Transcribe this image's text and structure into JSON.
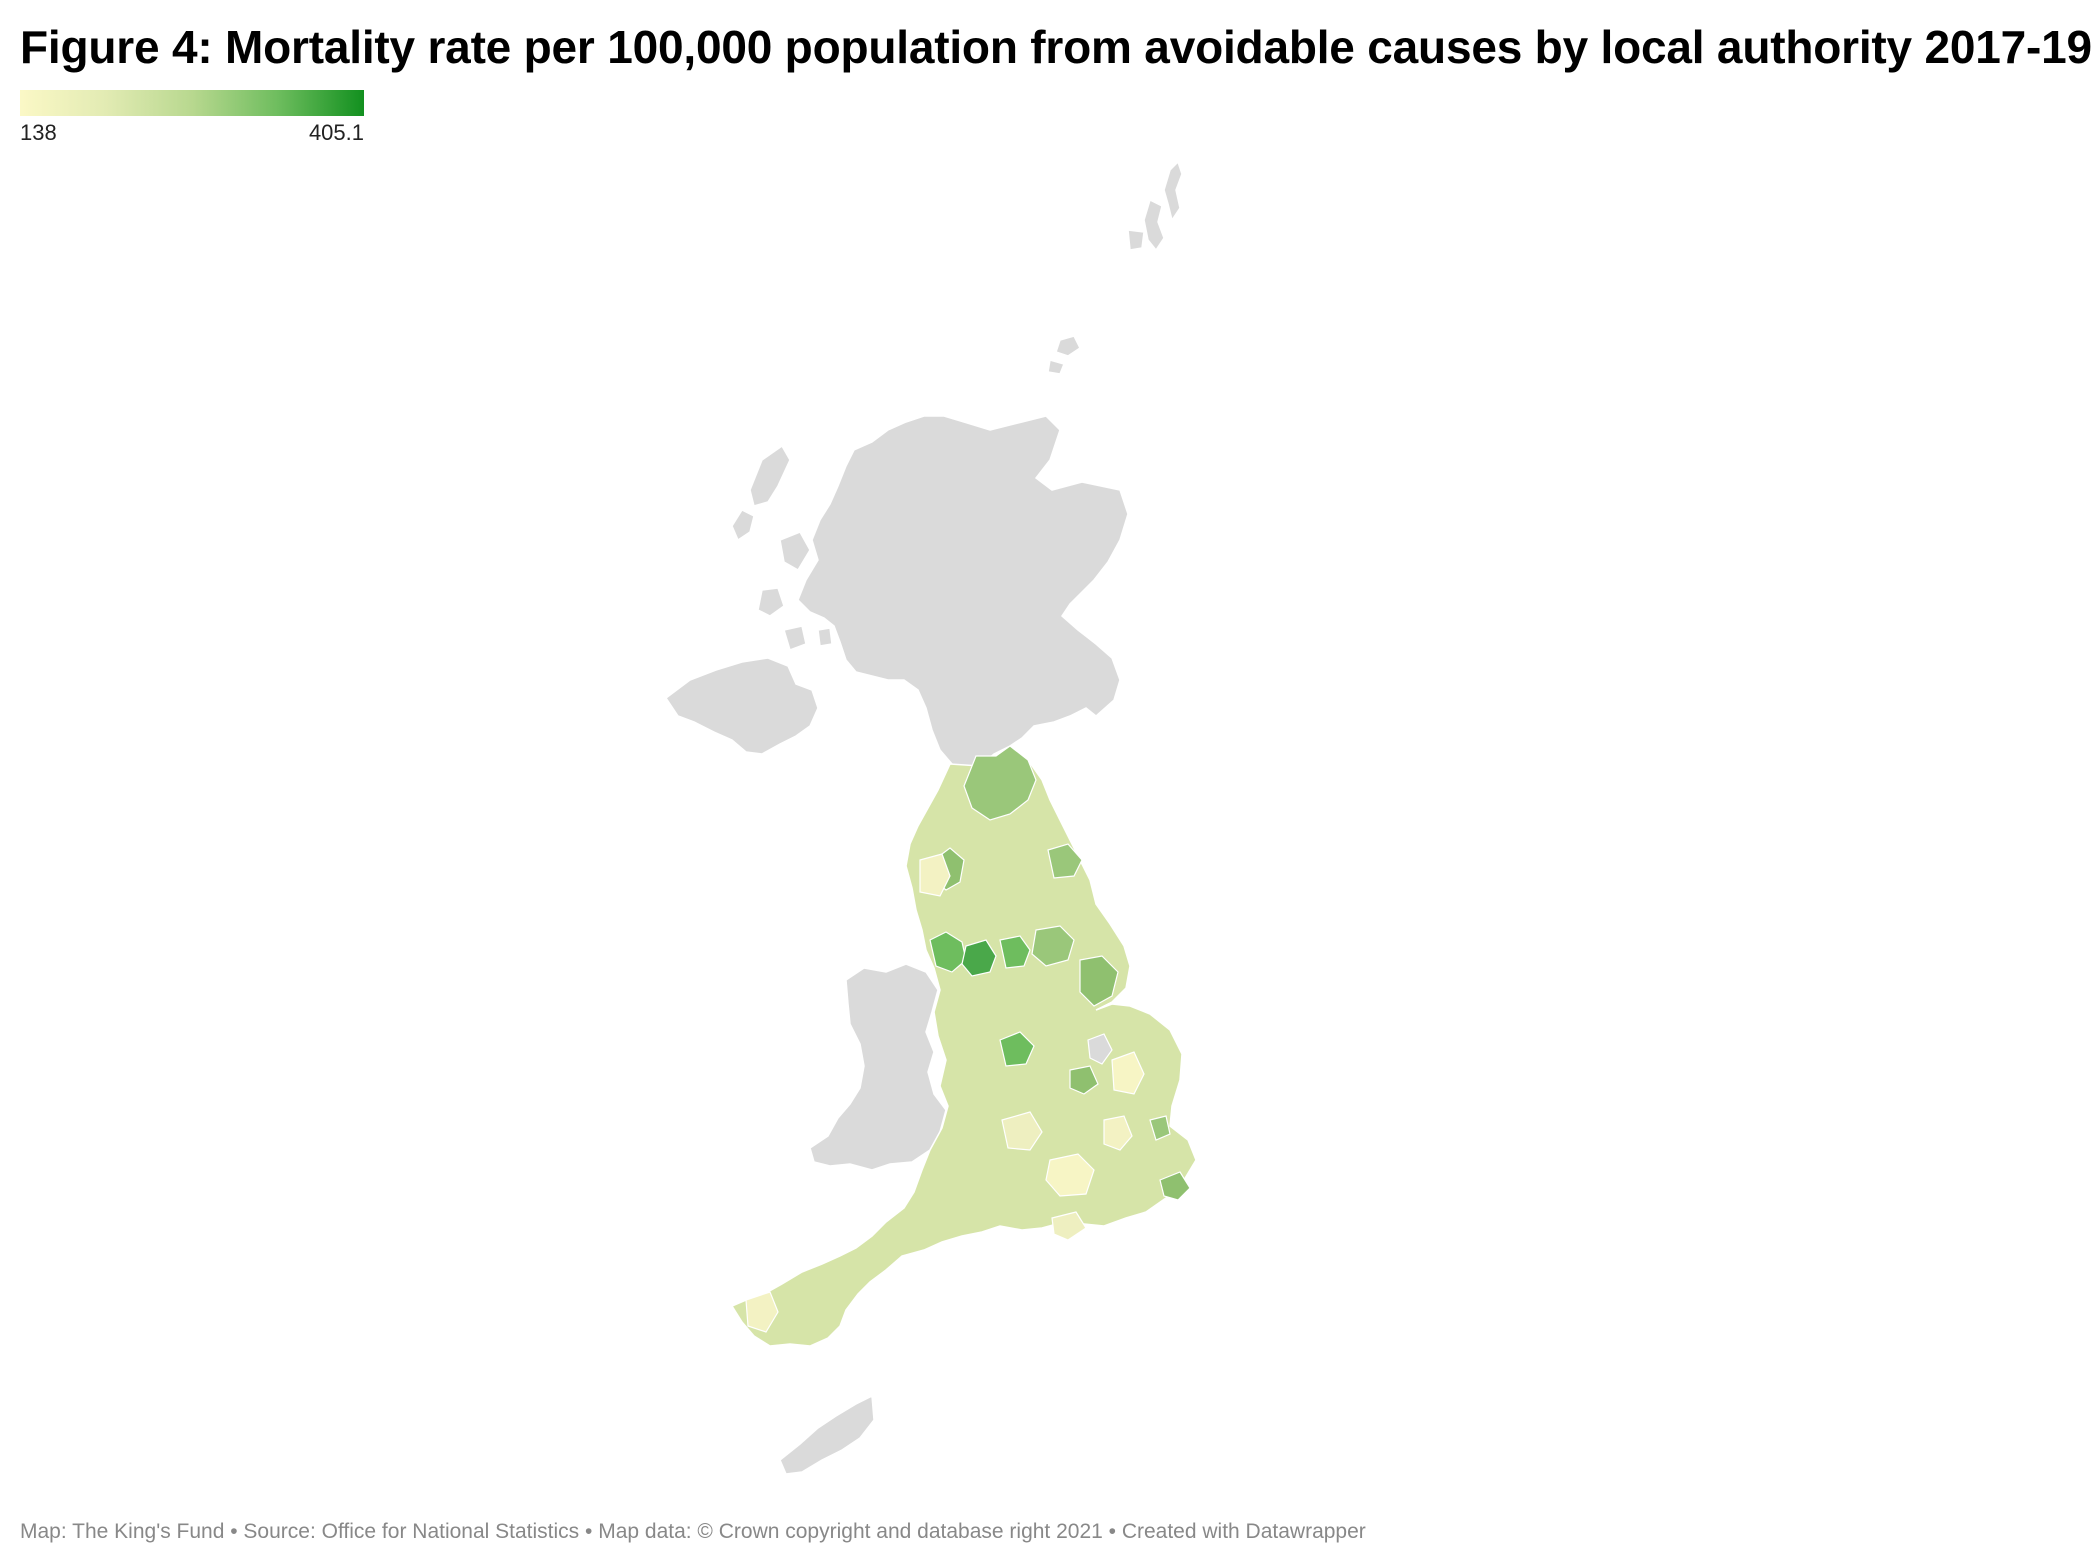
{
  "title": "Figure 4: Mortality rate per 100,000 population from avoidable causes by local authority 2017-19",
  "legend": {
    "min_label": "138",
    "max_label": "405.1",
    "min_value": 138,
    "max_value": 405.1,
    "color_low": "#fbf8c6",
    "color_high": "#12901f"
  },
  "colors": {
    "no_data": "#dadada",
    "region_border": "#ffffff"
  },
  "map": {
    "regions_with_data": [
      "England"
    ],
    "regions_no_data": [
      "Scotland",
      "Wales",
      "Northern Ireland"
    ]
  },
  "footer": "Map: The King's Fund • Source: Office for National Statistics • Map data: © Crown copyright and database right 2021 • Created with Datawrapper"
}
